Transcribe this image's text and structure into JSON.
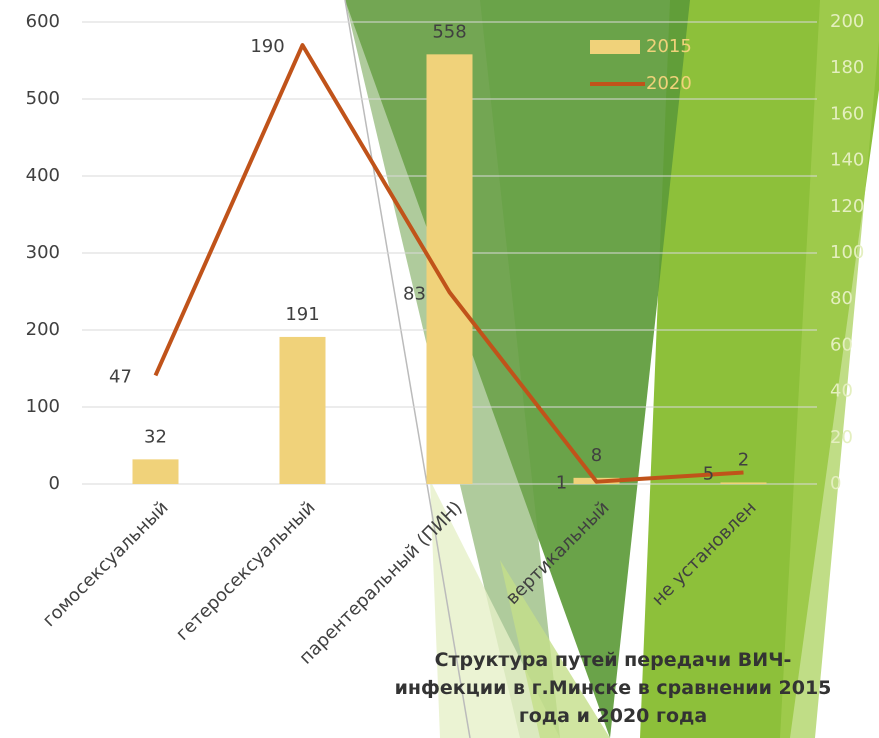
{
  "chart_data": {
    "type": "bar",
    "title": "Структура путей передачи ВИЧ-инфекции в г.Минске в сравнении 2015 года и 2020 года",
    "categories": [
      "гомосексуальный",
      "гетеросексуальный",
      "парентеральный (ПИН)",
      "вертикальный",
      "не установлен"
    ],
    "series": [
      {
        "name": "2015",
        "type": "bar",
        "color": "#f0d27a",
        "values": [
          32,
          191,
          558,
          8,
          2
        ]
      },
      {
        "name": "2020",
        "type": "line",
        "axis": "y2",
        "color": "#c0531a",
        "values": [
          47,
          190,
          83,
          1,
          5
        ]
      }
    ],
    "ylim": [
      0,
      600
    ],
    "yticks": [
      0,
      100,
      200,
      300,
      400,
      500,
      600
    ],
    "y2lim": [
      0,
      200
    ],
    "y2ticks": [
      0,
      20,
      40,
      60,
      80,
      100,
      120,
      140,
      160,
      180,
      200
    ],
    "grid": true
  }
}
